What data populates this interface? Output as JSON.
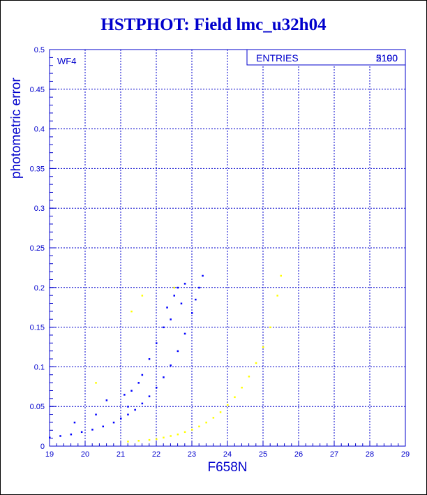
{
  "chart_data": {
    "type": "scatter",
    "title": "HSTPHOT: Field lmc_u32h04",
    "xlabel": "F658N",
    "ylabel": "photometric error",
    "xlim": [
      19,
      29
    ],
    "ylim": [
      0,
      0.5
    ],
    "x_ticks": [
      "19",
      "20",
      "21",
      "22",
      "23",
      "24",
      "25",
      "26",
      "27",
      "28",
      "29"
    ],
    "y_ticks": [
      "0",
      "0.05",
      "0.1",
      "0.15",
      "0.2",
      "0.25",
      "0.3",
      "0.35",
      "0.4",
      "0.45",
      "0.5"
    ],
    "grid": true,
    "panel_label": "WF4",
    "stats_box": {
      "label": "ENTRIES",
      "value": "2190",
      "overprinted_value": "5100"
    },
    "series": [
      {
        "color": "#0000ff",
        "description_points": [
          [
            19.0,
            0.011
          ],
          [
            19.3,
            0.013
          ],
          [
            19.6,
            0.015
          ],
          [
            19.9,
            0.018
          ],
          [
            20.2,
            0.021
          ],
          [
            20.5,
            0.025
          ],
          [
            20.8,
            0.03
          ],
          [
            21.0,
            0.035
          ],
          [
            21.2,
            0.04
          ],
          [
            21.4,
            0.046
          ],
          [
            21.6,
            0.054
          ],
          [
            21.8,
            0.063
          ],
          [
            22.0,
            0.074
          ],
          [
            22.2,
            0.087
          ],
          [
            22.4,
            0.102
          ],
          [
            22.6,
            0.12
          ],
          [
            22.8,
            0.142
          ],
          [
            23.0,
            0.168
          ],
          [
            23.1,
            0.185
          ],
          [
            23.2,
            0.2
          ],
          [
            23.3,
            0.215
          ],
          [
            19.7,
            0.03
          ],
          [
            20.3,
            0.04
          ],
          [
            20.6,
            0.058
          ],
          [
            21.1,
            0.065
          ],
          [
            21.3,
            0.07
          ],
          [
            21.6,
            0.09
          ],
          [
            21.8,
            0.11
          ],
          [
            22.0,
            0.13
          ],
          [
            22.2,
            0.15
          ],
          [
            22.3,
            0.175
          ],
          [
            22.5,
            0.19
          ],
          [
            22.6,
            0.2
          ],
          [
            22.8,
            0.205
          ],
          [
            21.2,
            0.05
          ],
          [
            21.5,
            0.08
          ],
          [
            22.4,
            0.16
          ],
          [
            22.7,
            0.18
          ]
        ]
      },
      {
        "color": "#ffff00",
        "description_points": [
          [
            21.2,
            0.006
          ],
          [
            21.5,
            0.007
          ],
          [
            21.8,
            0.008
          ],
          [
            22.0,
            0.009
          ],
          [
            22.2,
            0.011
          ],
          [
            22.4,
            0.013
          ],
          [
            22.6,
            0.015
          ],
          [
            22.8,
            0.018
          ],
          [
            23.0,
            0.021
          ],
          [
            23.2,
            0.025
          ],
          [
            23.4,
            0.03
          ],
          [
            23.6,
            0.036
          ],
          [
            23.8,
            0.043
          ],
          [
            24.0,
            0.052
          ],
          [
            24.2,
            0.062
          ],
          [
            24.4,
            0.074
          ],
          [
            24.6,
            0.088
          ],
          [
            24.8,
            0.105
          ],
          [
            25.0,
            0.125
          ],
          [
            25.2,
            0.15
          ],
          [
            25.4,
            0.19
          ],
          [
            25.5,
            0.215
          ],
          [
            20.3,
            0.08
          ],
          [
            21.3,
            0.17
          ],
          [
            21.6,
            0.19
          ],
          [
            22.5,
            0.2
          ]
        ]
      }
    ]
  }
}
